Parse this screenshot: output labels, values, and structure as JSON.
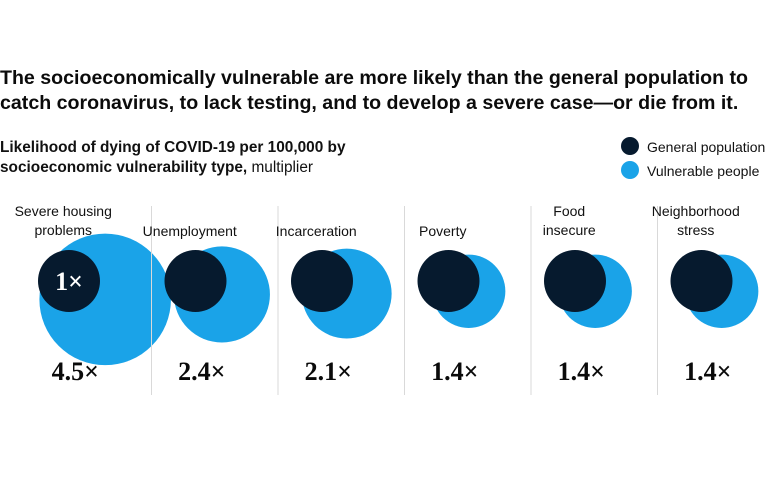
{
  "headline_lines": [
    "The socioeconomically vulnerable are more likely than the general population to",
    "catch coronavirus, to lack testing, and to develop a severe case—or die from it."
  ],
  "subtitle": {
    "bold_line1": "Likelihood of dying of COVID-19 per 100,000 by",
    "bold_line2": "socioeconomic vulnerability type,",
    "light_suffix": " multiplier"
  },
  "colors": {
    "general": "#061a2e",
    "vulnerable": "#1aa3e8",
    "divider": "#d9d9d9"
  },
  "chart_data": {
    "type": "bubble-comparison",
    "categories": [
      [
        "Severe housing",
        "problems"
      ],
      [
        "Unemployment"
      ],
      [
        "Incarceration"
      ],
      [
        "Poverty"
      ],
      [
        "Food",
        "insecure"
      ],
      [
        "Neighborhood",
        "stress"
      ]
    ],
    "series": [
      {
        "name": "General population",
        "values": [
          1,
          1,
          1,
          1,
          1,
          1
        ]
      },
      {
        "name": "Vulnerable people",
        "values": [
          4.5,
          2.4,
          2.1,
          1.4,
          1.4,
          1.4
        ]
      }
    ],
    "general_labels": [
      "1×",
      "",
      "",
      "",
      "",
      ""
    ],
    "value_labels": [
      "4.5×",
      "2.4×",
      "2.1×",
      "1.4×",
      "1.4×",
      "1.4×"
    ]
  }
}
